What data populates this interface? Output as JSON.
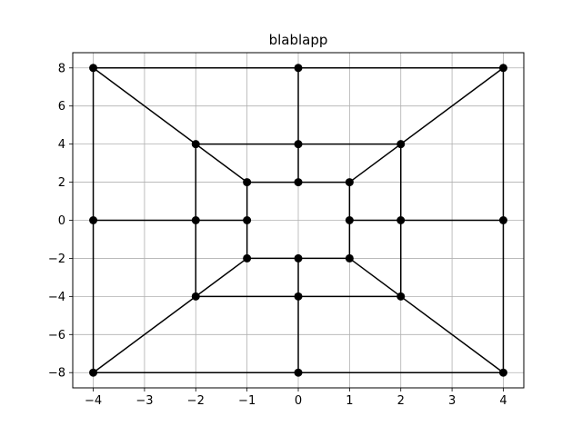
{
  "chart_data": {
    "type": "line",
    "title": "blablapp",
    "xlabel": "",
    "ylabel": "",
    "xlim": [
      -4.4,
      4.4
    ],
    "ylim": [
      -8.8,
      8.8
    ],
    "xticks": [
      -4,
      -3,
      -2,
      -1,
      0,
      1,
      2,
      3,
      4
    ],
    "xtick_labels": [
      "−4",
      "−3",
      "−2",
      "−1",
      "0",
      "1",
      "2",
      "3",
      "4"
    ],
    "yticks": [
      -8,
      -6,
      -4,
      -2,
      0,
      2,
      4,
      6,
      8
    ],
    "ytick_labels": [
      "−8",
      "−6",
      "−4",
      "−2",
      "0",
      "2",
      "4",
      "6",
      "8"
    ],
    "grid": true,
    "line_color": "#000000",
    "marker": "circle",
    "grid_color": "#b0b0b0",
    "segments": [
      [
        [
          -4,
          8
        ],
        [
          4,
          8
        ]
      ],
      [
        [
          -4,
          -8
        ],
        [
          4,
          -8
        ]
      ],
      [
        [
          -4,
          8
        ],
        [
          -4,
          -8
        ]
      ],
      [
        [
          4,
          8
        ],
        [
          4,
          -8
        ]
      ],
      [
        [
          -2,
          4
        ],
        [
          2,
          4
        ]
      ],
      [
        [
          -2,
          -4
        ],
        [
          2,
          -4
        ]
      ],
      [
        [
          -2,
          4
        ],
        [
          -2,
          -4
        ]
      ],
      [
        [
          2,
          4
        ],
        [
          2,
          -4
        ]
      ],
      [
        [
          -1,
          2
        ],
        [
          1,
          2
        ]
      ],
      [
        [
          -1,
          -2
        ],
        [
          1,
          -2
        ]
      ],
      [
        [
          -1,
          2
        ],
        [
          -1,
          -2
        ]
      ],
      [
        [
          1,
          2
        ],
        [
          1,
          -2
        ]
      ],
      [
        [
          -4,
          8
        ],
        [
          -1,
          2
        ]
      ],
      [
        [
          4,
          8
        ],
        [
          1,
          2
        ]
      ],
      [
        [
          -4,
          -8
        ],
        [
          -1,
          -2
        ]
      ],
      [
        [
          4,
          -8
        ],
        [
          1,
          -2
        ]
      ],
      [
        [
          0,
          8
        ],
        [
          0,
          2
        ]
      ],
      [
        [
          0,
          -2
        ],
        [
          0,
          -8
        ]
      ],
      [
        [
          -4,
          0
        ],
        [
          -1,
          0
        ]
      ],
      [
        [
          1,
          0
        ],
        [
          4,
          0
        ]
      ]
    ],
    "points": [
      [
        -4,
        8
      ],
      [
        0,
        8
      ],
      [
        4,
        8
      ],
      [
        -2,
        4
      ],
      [
        0,
        4
      ],
      [
        2,
        4
      ],
      [
        -1,
        2
      ],
      [
        0,
        2
      ],
      [
        1,
        2
      ],
      [
        -4,
        0
      ],
      [
        -2,
        0
      ],
      [
        -1,
        0
      ],
      [
        1,
        0
      ],
      [
        2,
        0
      ],
      [
        4,
        0
      ],
      [
        -1,
        -2
      ],
      [
        0,
        -2
      ],
      [
        1,
        -2
      ],
      [
        -2,
        -4
      ],
      [
        0,
        -4
      ],
      [
        2,
        -4
      ],
      [
        -4,
        -8
      ],
      [
        0,
        -8
      ],
      [
        4,
        -8
      ]
    ]
  }
}
